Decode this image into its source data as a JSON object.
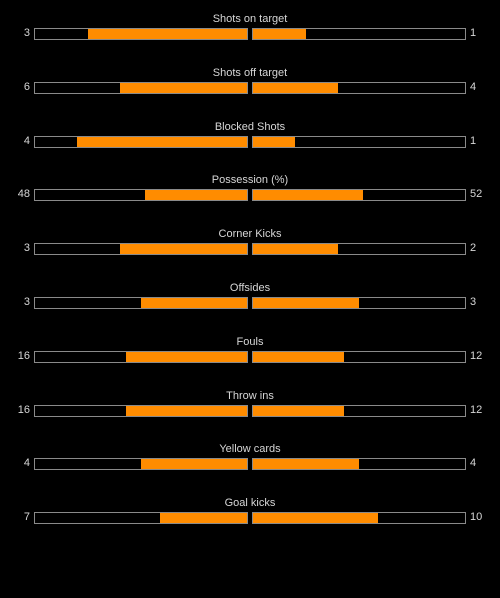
{
  "colors": {
    "background": "#000000",
    "bar_fill": "#ff8c00",
    "bar_border": "#8a8a8a",
    "text": "#d7d7d7"
  },
  "stats": [
    {
      "label": "Shots on target",
      "home": "3",
      "away": "1",
      "home_fraction": 0.75,
      "away_fraction": 0.25
    },
    {
      "label": "Shots off target",
      "home": "6",
      "away": "4",
      "home_fraction": 0.6,
      "away_fraction": 0.4
    },
    {
      "label": "Blocked Shots",
      "home": "4",
      "away": "1",
      "home_fraction": 0.8,
      "away_fraction": 0.2
    },
    {
      "label": "Possession (%)",
      "home": "48",
      "away": "52",
      "home_fraction": 0.48,
      "away_fraction": 0.52
    },
    {
      "label": "Corner Kicks",
      "home": "3",
      "away": "2",
      "home_fraction": 0.6,
      "away_fraction": 0.4
    },
    {
      "label": "Offsides",
      "home": "3",
      "away": "3",
      "home_fraction": 0.5,
      "away_fraction": 0.5
    },
    {
      "label": "Fouls",
      "home": "16",
      "away": "12",
      "home_fraction": 0.5714,
      "away_fraction": 0.4286
    },
    {
      "label": "Throw ins",
      "home": "16",
      "away": "12",
      "home_fraction": 0.5714,
      "away_fraction": 0.4286
    },
    {
      "label": "Yellow cards",
      "home": "4",
      "away": "4",
      "home_fraction": 0.5,
      "away_fraction": 0.5
    },
    {
      "label": "Goal kicks",
      "home": "7",
      "away": "10",
      "home_fraction": 0.4118,
      "away_fraction": 0.5882
    }
  ]
}
